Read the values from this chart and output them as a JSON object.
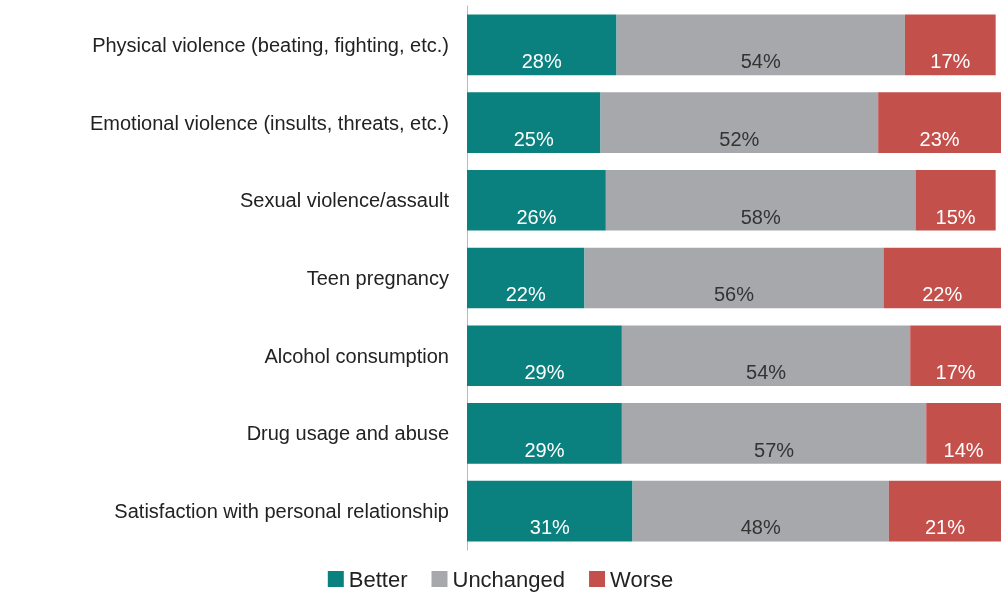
{
  "chart_data": {
    "type": "bar",
    "orientation": "horizontal",
    "stacked": true,
    "legend": "bottom",
    "categories": [
      "Physical violence (beating, fighting, etc.)",
      "Emotional violence (insults, threats, etc.)",
      "Sexual violence/assault",
      "Teen pregnancy",
      "Alcohol consumption",
      "Drug usage and abuse",
      "Satisfaction with personal relationship"
    ],
    "series": [
      {
        "name": "Better",
        "color": "#0a817e",
        "values": [
          28,
          25,
          26,
          22,
          29,
          29,
          31
        ],
        "value_labels": [
          "28%",
          "25%",
          "26%",
          "22%",
          "29%",
          "29%",
          "31%"
        ]
      },
      {
        "name": "Unchanged",
        "color": "#a7a8ab",
        "values": [
          54,
          52,
          58,
          56,
          54,
          57,
          48
        ],
        "value_labels": [
          "54%",
          "52%",
          "58%",
          "56%",
          "54%",
          "57%",
          "48%"
        ]
      },
      {
        "name": "Worse",
        "color": "#c4504c",
        "values": [
          17,
          23,
          15,
          22,
          17,
          14,
          21
        ],
        "value_labels": [
          "17%",
          "23%",
          "15%",
          "22%",
          "17%",
          "14%",
          "21%"
        ]
      }
    ]
  }
}
